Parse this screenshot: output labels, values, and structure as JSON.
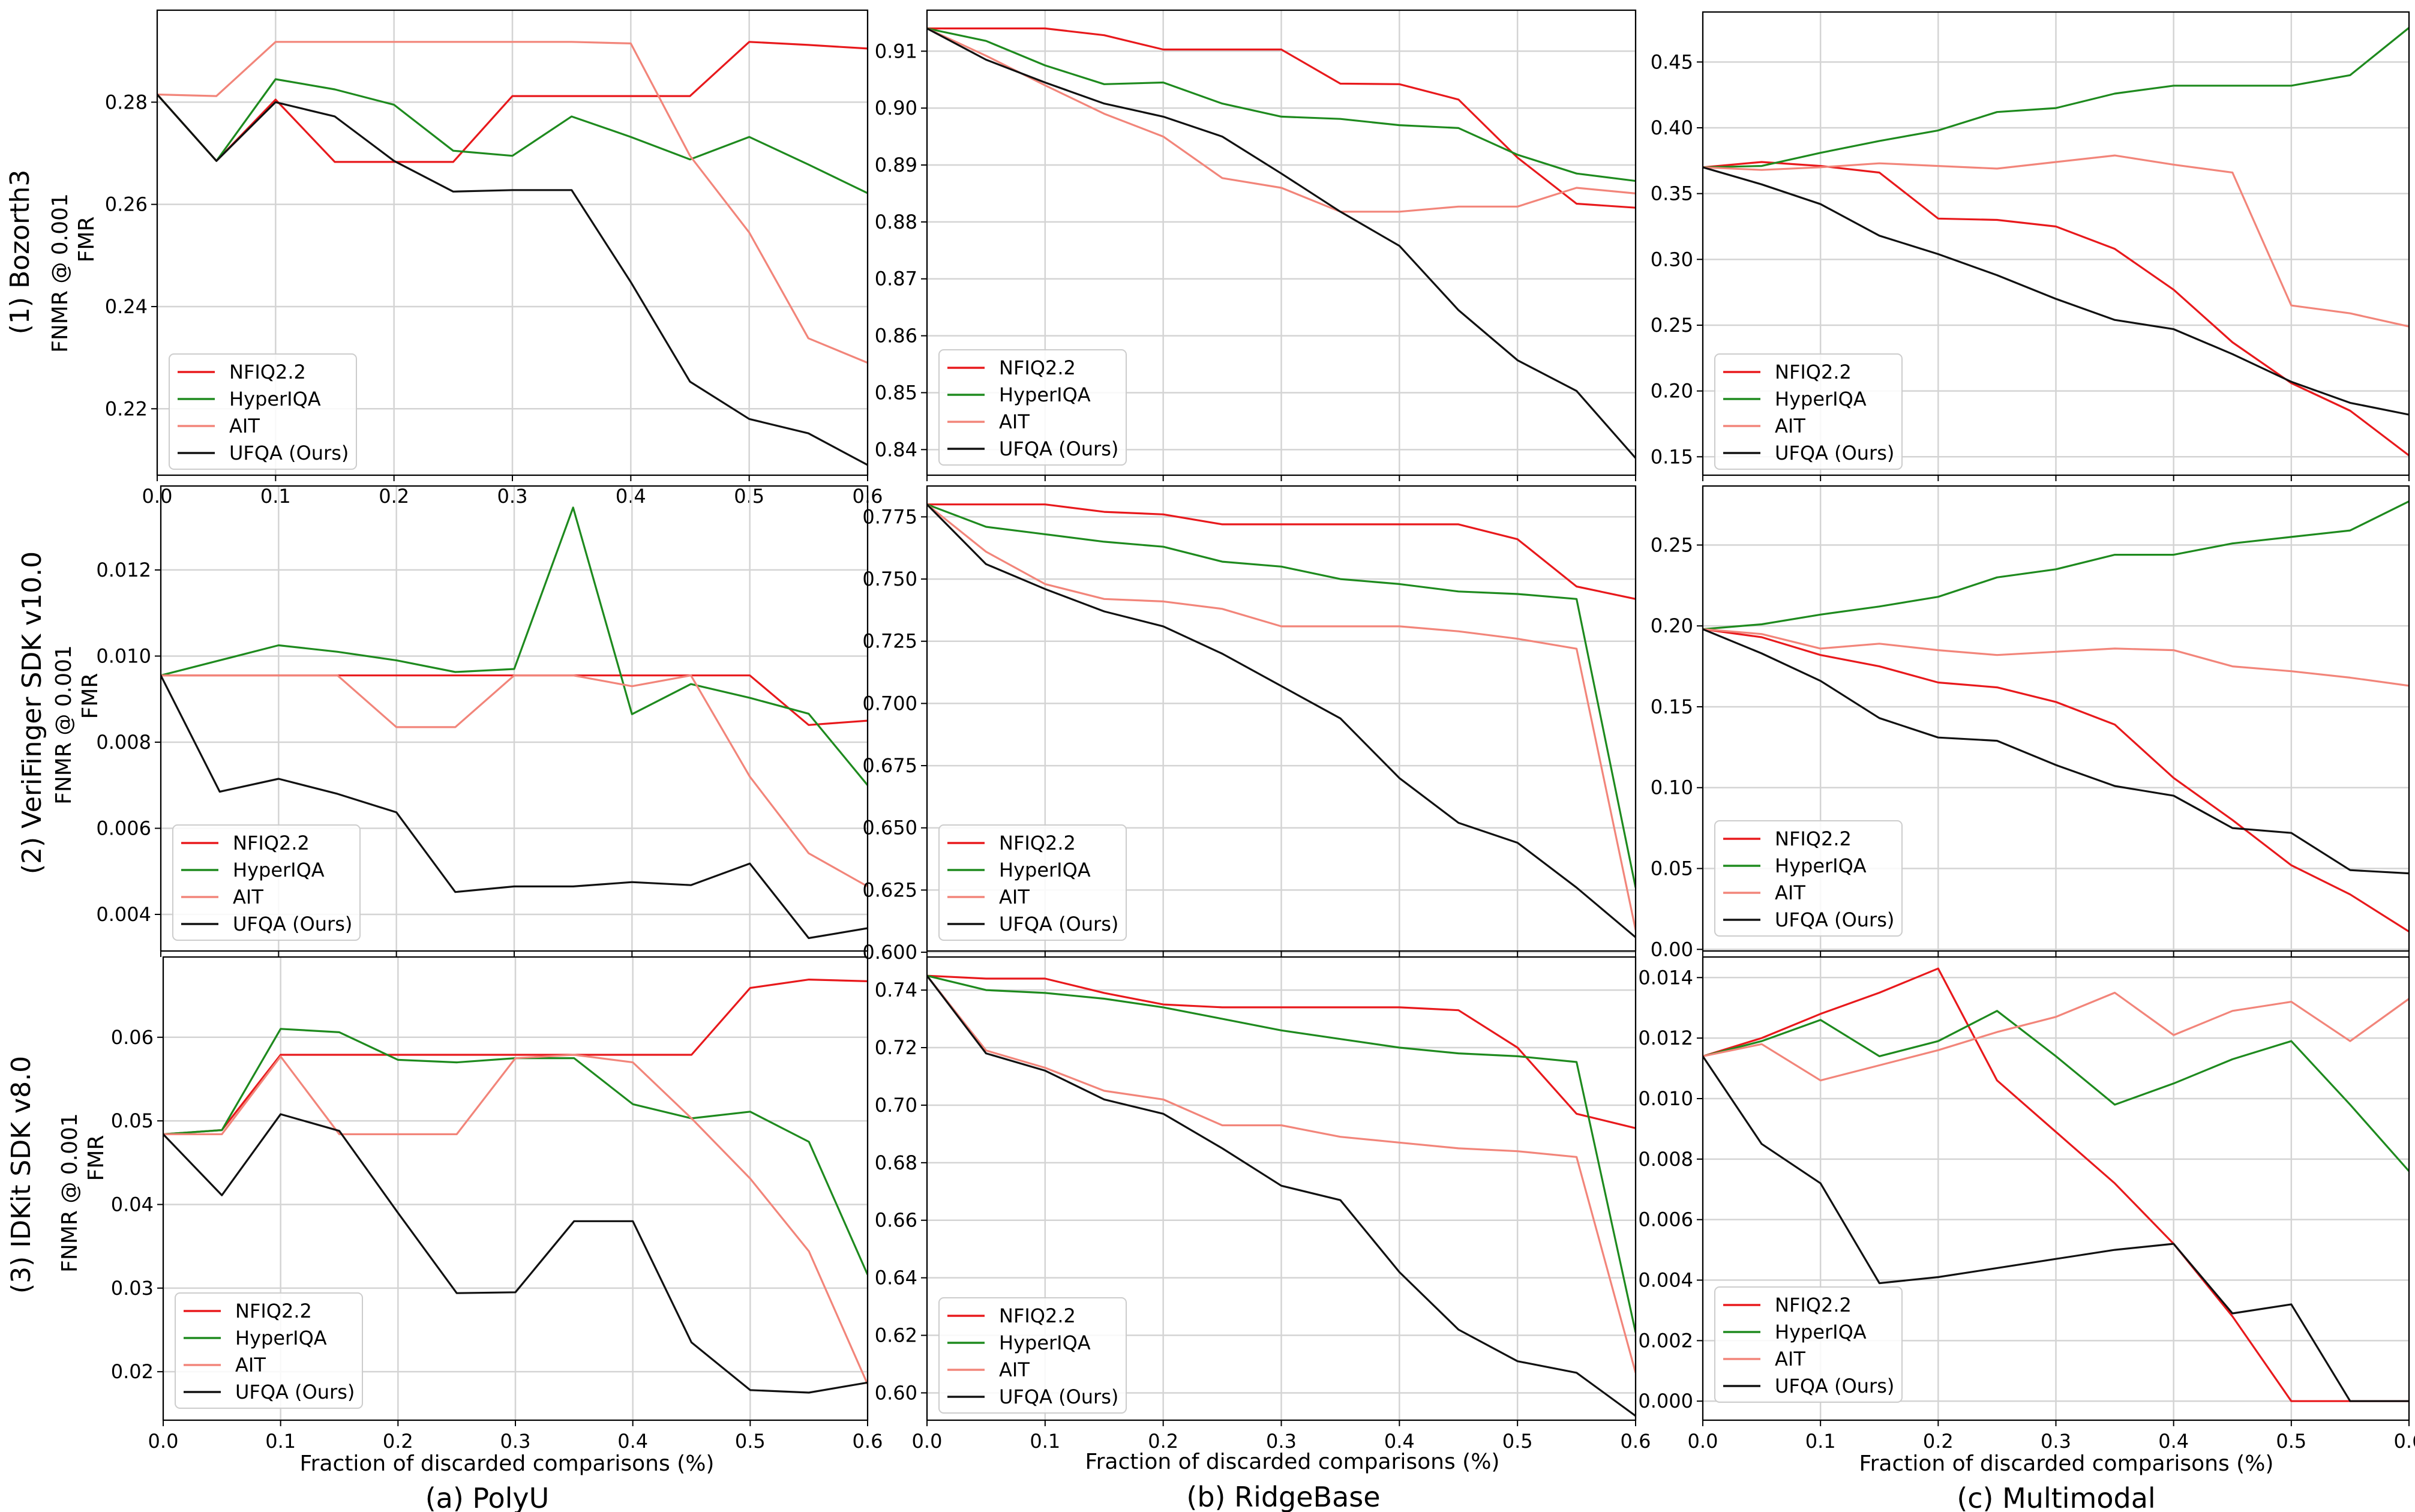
{
  "figure": {
    "row_titles": [
      "(1) Bozorth3",
      "(2) VeriFinger SDK v10.0",
      "(3) IDKit SDK v8.0"
    ],
    "ylabel_line1": "FNMR @ 0.001",
    "ylabel_line2": "FMR",
    "xlabel": "Fraction of discarded comparisons (%)",
    "column_titles": [
      "(a) PolyU",
      "(b) RidgeBase",
      "(c) Multimodal"
    ],
    "legend_labels": [
      "NFIQ2.2",
      "HyperIQA",
      "AIT",
      "UFQA (Ours)"
    ],
    "series_colors": {
      "NFIQ2.2": "#e8191c",
      "HyperIQA": "#1e8a1e",
      "AIT": "#f2857a",
      "UFQA (Ours)": "#111111"
    }
  },
  "chart_data": [
    {
      "type": "line",
      "panel": "(1) Bozorth3 / (a) PolyU",
      "x": [
        0,
        0.05,
        0.1,
        0.15,
        0.2,
        0.25,
        0.3,
        0.35,
        0.4,
        0.45,
        0.5,
        0.55,
        0.6
      ],
      "xlim": [
        0,
        0.6
      ],
      "ylim": [
        0.207,
        0.298
      ],
      "xticks": [
        "0.0",
        "0.1",
        "0.2",
        "0.3",
        "0.4",
        "0.5",
        "0.6"
      ],
      "yticks": [
        "0.22",
        "0.24",
        "0.26",
        "0.28"
      ],
      "ytick_values": [
        0.22,
        0.24,
        0.26,
        0.28
      ],
      "series": [
        {
          "name": "NFIQ2.2",
          "values": [
            0.2815,
            0.2685,
            0.2805,
            0.2683,
            0.2683,
            0.2683,
            0.2812,
            0.2812,
            0.2812,
            0.2812,
            0.2918,
            0.2912,
            0.2905
          ]
        },
        {
          "name": "HyperIQA",
          "values": [
            0.2815,
            0.2685,
            0.2845,
            0.2825,
            0.2795,
            0.2705,
            0.2695,
            0.2772,
            0.2732,
            0.2688,
            0.2732,
            0.2678,
            0.2622
          ]
        },
        {
          "name": "AIT",
          "values": [
            0.2815,
            0.2812,
            0.2918,
            0.2918,
            0.2918,
            0.2918,
            0.2918,
            0.2918,
            0.2915,
            0.2695,
            0.2545,
            0.2338,
            0.229
          ]
        },
        {
          "name": "UFQA (Ours)",
          "values": [
            0.2815,
            0.2685,
            0.28,
            0.2772,
            0.2685,
            0.2625,
            0.2628,
            0.2628,
            0.2448,
            0.2253,
            0.218,
            0.2152,
            0.209
          ]
        }
      ]
    },
    {
      "type": "line",
      "panel": "(1) Bozorth3 / (b) RidgeBase",
      "x": [
        0,
        0.05,
        0.1,
        0.15,
        0.2,
        0.25,
        0.3,
        0.35,
        0.4,
        0.45,
        0.5,
        0.55,
        0.6
      ],
      "xlim": [
        0,
        0.6
      ],
      "ylim": [
        0.8355,
        0.9172
      ],
      "xticks": [],
      "yticks": [
        "0.84",
        "0.85",
        "0.86",
        "0.87",
        "0.88",
        "0.89",
        "0.90",
        "0.91"
      ],
      "ytick_values": [
        0.84,
        0.85,
        0.86,
        0.87,
        0.88,
        0.89,
        0.9,
        0.91
      ],
      "series": [
        {
          "name": "NFIQ2.2",
          "values": [
            0.914,
            0.914,
            0.914,
            0.9128,
            0.9103,
            0.9103,
            0.9103,
            0.9043,
            0.9042,
            0.9015,
            0.8913,
            0.8832,
            0.8825
          ]
        },
        {
          "name": "HyperIQA",
          "values": [
            0.914,
            0.9118,
            0.9075,
            0.9042,
            0.9045,
            0.9008,
            0.8985,
            0.8981,
            0.897,
            0.8965,
            0.8918,
            0.8885,
            0.8872
          ]
        },
        {
          "name": "AIT",
          "values": [
            0.914,
            0.9092,
            0.904,
            0.899,
            0.895,
            0.8877,
            0.886,
            0.8818,
            0.8818,
            0.8827,
            0.8827,
            0.886,
            0.885
          ]
        },
        {
          "name": "UFQA (Ours)",
          "values": [
            0.914,
            0.9085,
            0.9045,
            0.9008,
            0.8985,
            0.895,
            0.8885,
            0.8818,
            0.8758,
            0.8645,
            0.8557,
            0.8503,
            0.8385
          ]
        }
      ]
    },
    {
      "type": "line",
      "panel": "(1) Bozorth3 / (c) Multimodal",
      "x": [
        0,
        0.05,
        0.1,
        0.15,
        0.2,
        0.25,
        0.3,
        0.35,
        0.4,
        0.45,
        0.5,
        0.55,
        0.6
      ],
      "xlim": [
        0,
        0.6
      ],
      "ylim": [
        0.136,
        0.488
      ],
      "xticks": [],
      "yticks": [
        "0.15",
        "0.20",
        "0.25",
        "0.30",
        "0.35",
        "0.40",
        "0.45"
      ],
      "ytick_values": [
        0.15,
        0.2,
        0.25,
        0.3,
        0.35,
        0.4,
        0.45
      ],
      "series": [
        {
          "name": "NFIQ2.2",
          "values": [
            0.37,
            0.374,
            0.371,
            0.366,
            0.331,
            0.33,
            0.325,
            0.308,
            0.277,
            0.237,
            0.206,
            0.185,
            0.151
          ]
        },
        {
          "name": "HyperIQA",
          "values": [
            0.37,
            0.371,
            0.381,
            0.39,
            0.398,
            0.412,
            0.415,
            0.426,
            0.432,
            0.432,
            0.432,
            0.44,
            0.476
          ]
        },
        {
          "name": "AIT",
          "values": [
            0.37,
            0.368,
            0.37,
            0.373,
            0.371,
            0.369,
            0.374,
            0.379,
            0.372,
            0.366,
            0.265,
            0.259,
            0.249
          ]
        },
        {
          "name": "UFQA (Ours)",
          "values": [
            0.37,
            0.357,
            0.342,
            0.318,
            0.304,
            0.288,
            0.27,
            0.254,
            0.247,
            0.228,
            0.207,
            0.191,
            0.182
          ]
        }
      ]
    },
    {
      "type": "line",
      "panel": "(2) VeriFinger SDK v10.0 / (a) PolyU",
      "x": [
        0,
        0.05,
        0.1,
        0.15,
        0.2,
        0.25,
        0.3,
        0.35,
        0.4,
        0.45,
        0.5,
        0.55,
        0.6
      ],
      "xlim": [
        0,
        0.6
      ],
      "ylim": [
        0.00315,
        0.01395
      ],
      "xticks": [],
      "yticks": [
        "0.004",
        "0.006",
        "0.008",
        "0.010",
        "0.012"
      ],
      "ytick_values": [
        0.004,
        0.006,
        0.008,
        0.01,
        0.012
      ],
      "series": [
        {
          "name": "NFIQ2.2",
          "values": [
            0.00955,
            0.00955,
            0.00955,
            0.00955,
            0.00955,
            0.00955,
            0.00955,
            0.00955,
            0.00955,
            0.00955,
            0.00955,
            0.0084,
            0.0085
          ]
        },
        {
          "name": "HyperIQA",
          "values": [
            0.00955,
            0.0099,
            0.01025,
            0.0101,
            0.0099,
            0.00963,
            0.0097,
            0.01345,
            0.00865,
            0.00935,
            0.00903,
            0.00866,
            0.007
          ]
        },
        {
          "name": "AIT",
          "values": [
            0.00955,
            0.00955,
            0.00955,
            0.00955,
            0.00835,
            0.00835,
            0.00955,
            0.00955,
            0.0093,
            0.00955,
            0.0072,
            0.00542,
            0.00465
          ]
        },
        {
          "name": "UFQA (Ours)",
          "values": [
            0.00955,
            0.00685,
            0.00715,
            0.0068,
            0.00637,
            0.00452,
            0.00465,
            0.00465,
            0.00475,
            0.00468,
            0.00518,
            0.00345,
            0.00368
          ]
        }
      ]
    },
    {
      "type": "line",
      "panel": "(2) VeriFinger SDK v10.0 / (b) RidgeBase",
      "x": [
        0,
        0.05,
        0.1,
        0.15,
        0.2,
        0.25,
        0.3,
        0.35,
        0.4,
        0.45,
        0.5,
        0.55,
        0.6
      ],
      "xlim": [
        0,
        0.6
      ],
      "ylim": [
        0.6005,
        0.7874
      ],
      "xticks": [],
      "yticks": [
        "0.600",
        "0.625",
        "0.650",
        "0.675",
        "0.700",
        "0.725",
        "0.750",
        "0.775"
      ],
      "ytick_values": [
        0.6,
        0.625,
        0.65,
        0.675,
        0.7,
        0.725,
        0.75,
        0.775
      ],
      "series": [
        {
          "name": "NFIQ2.2",
          "values": [
            0.78,
            0.78,
            0.78,
            0.777,
            0.776,
            0.772,
            0.772,
            0.772,
            0.772,
            0.772,
            0.766,
            0.747,
            0.742
          ]
        },
        {
          "name": "HyperIQA",
          "values": [
            0.78,
            0.771,
            0.768,
            0.765,
            0.763,
            0.757,
            0.755,
            0.75,
            0.748,
            0.745,
            0.744,
            0.742,
            0.626
          ]
        },
        {
          "name": "AIT",
          "values": [
            0.78,
            0.761,
            0.748,
            0.742,
            0.741,
            0.738,
            0.731,
            0.731,
            0.731,
            0.729,
            0.726,
            0.722,
            0.609
          ]
        },
        {
          "name": "UFQA (Ours)",
          "values": [
            0.78,
            0.756,
            0.746,
            0.737,
            0.731,
            0.72,
            0.707,
            0.694,
            0.67,
            0.652,
            0.644,
            0.626,
            0.606
          ]
        }
      ]
    },
    {
      "type": "line",
      "panel": "(2) VeriFinger SDK v10.0 / (c) Multimodal",
      "x": [
        0,
        0.05,
        0.1,
        0.15,
        0.2,
        0.25,
        0.3,
        0.35,
        0.4,
        0.45,
        0.5,
        0.55,
        0.6
      ],
      "xlim": [
        0,
        0.6
      ],
      "ylim": [
        -0.001,
        0.2865
      ],
      "xticks": [],
      "yticks": [
        "0.00",
        "0.05",
        "0.10",
        "0.15",
        "0.20",
        "0.25"
      ],
      "ytick_values": [
        0,
        0.05,
        0.1,
        0.15,
        0.2,
        0.25
      ],
      "series": [
        {
          "name": "NFIQ2.2",
          "values": [
            0.198,
            0.193,
            0.182,
            0.175,
            0.165,
            0.162,
            0.153,
            0.139,
            0.106,
            0.08,
            0.052,
            0.034,
            0.011
          ]
        },
        {
          "name": "HyperIQA",
          "values": [
            0.198,
            0.201,
            0.207,
            0.212,
            0.218,
            0.23,
            0.235,
            0.244,
            0.244,
            0.251,
            0.255,
            0.259,
            0.277
          ]
        },
        {
          "name": "AIT",
          "values": [
            0.198,
            0.195,
            0.186,
            0.189,
            0.185,
            0.182,
            0.184,
            0.186,
            0.185,
            0.175,
            0.172,
            0.168,
            0.163
          ]
        },
        {
          "name": "UFQA (Ours)",
          "values": [
            0.198,
            0.183,
            0.166,
            0.143,
            0.131,
            0.129,
            0.114,
            0.101,
            0.095,
            0.075,
            0.072,
            0.049,
            0.047
          ]
        }
      ]
    },
    {
      "type": "line",
      "panel": "(3) IDKit SDK v8.0 / (a) PolyU",
      "x": [
        0,
        0.05,
        0.1,
        0.15,
        0.2,
        0.25,
        0.3,
        0.35,
        0.4,
        0.45,
        0.5,
        0.55,
        0.6
      ],
      "xlim": [
        0,
        0.6
      ],
      "ylim": [
        0.0142,
        0.0696
      ],
      "xticks": [
        "0.0",
        "0.1",
        "0.2",
        "0.3",
        "0.4",
        "0.5",
        "0.6"
      ],
      "yticks": [
        "0.02",
        "0.03",
        "0.04",
        "0.05",
        "0.06"
      ],
      "ytick_values": [
        0.02,
        0.03,
        0.04,
        0.05,
        0.06
      ],
      "series": [
        {
          "name": "NFIQ2.2",
          "values": [
            0.0484,
            0.0489,
            0.0579,
            0.0579,
            0.0579,
            0.0579,
            0.0579,
            0.0579,
            0.0579,
            0.0579,
            0.0659,
            0.0669,
            0.0667
          ]
        },
        {
          "name": "HyperIQA",
          "values": [
            0.0484,
            0.0489,
            0.061,
            0.0606,
            0.0573,
            0.057,
            0.0575,
            0.0575,
            0.052,
            0.0503,
            0.0511,
            0.0475,
            0.0316
          ]
        },
        {
          "name": "AIT",
          "values": [
            0.0484,
            0.0484,
            0.0577,
            0.0484,
            0.0484,
            0.0484,
            0.0575,
            0.0579,
            0.057,
            0.0503,
            0.0431,
            0.0344,
            0.0185
          ]
        },
        {
          "name": "UFQA (Ours)",
          "values": [
            0.0484,
            0.0411,
            0.0508,
            0.0488,
            0.039,
            0.0294,
            0.0295,
            0.038,
            0.038,
            0.0235,
            0.0178,
            0.0175,
            0.0187
          ]
        }
      ]
    },
    {
      "type": "line",
      "panel": "(3) IDKit SDK v8.0 / (b) RidgeBase",
      "x": [
        0,
        0.05,
        0.1,
        0.15,
        0.2,
        0.25,
        0.3,
        0.35,
        0.4,
        0.45,
        0.5,
        0.55,
        0.6
      ],
      "xlim": [
        0,
        0.6
      ],
      "ylim": [
        0.5905,
        0.7515
      ],
      "xticks": [
        "0.0",
        "0.1",
        "0.2",
        "0.3",
        "0.4",
        "0.5",
        "0.6"
      ],
      "yticks": [
        "0.60",
        "0.62",
        "0.64",
        "0.66",
        "0.68",
        "0.70",
        "0.72",
        "0.74"
      ],
      "ytick_values": [
        0.6,
        0.62,
        0.64,
        0.66,
        0.68,
        0.7,
        0.72,
        0.74
      ],
      "series": [
        {
          "name": "NFIQ2.2",
          "values": [
            0.745,
            0.744,
            0.744,
            0.739,
            0.735,
            0.734,
            0.734,
            0.734,
            0.734,
            0.733,
            0.72,
            0.697,
            0.692
          ]
        },
        {
          "name": "HyperIQA",
          "values": [
            0.745,
            0.74,
            0.739,
            0.737,
            0.734,
            0.73,
            0.726,
            0.723,
            0.72,
            0.718,
            0.717,
            0.715,
            0.621
          ]
        },
        {
          "name": "AIT",
          "values": [
            0.745,
            0.719,
            0.713,
            0.705,
            0.702,
            0.693,
            0.693,
            0.689,
            0.687,
            0.685,
            0.684,
            0.682,
            0.607
          ]
        },
        {
          "name": "UFQA (Ours)",
          "values": [
            0.745,
            0.718,
            0.712,
            0.702,
            0.697,
            0.685,
            0.672,
            0.667,
            0.642,
            0.622,
            0.611,
            0.607,
            0.592
          ]
        }
      ]
    },
    {
      "type": "line",
      "panel": "(3) IDKit SDK v8.0 / (c) Multimodal",
      "x": [
        0,
        0.05,
        0.1,
        0.15,
        0.2,
        0.25,
        0.3,
        0.35,
        0.4,
        0.45,
        0.5,
        0.55,
        0.6
      ],
      "xlim": [
        0,
        0.6
      ],
      "ylim": [
        -0.00063,
        0.01468
      ],
      "xticks": [
        "0.0",
        "0.1",
        "0.2",
        "0.3",
        "0.4",
        "0.5",
        "0.6"
      ],
      "yticks": [
        "0.000",
        "0.002",
        "0.004",
        "0.006",
        "0.008",
        "0.010",
        "0.012",
        "0.014"
      ],
      "ytick_values": [
        0,
        0.002,
        0.004,
        0.006,
        0.008,
        0.01,
        0.012,
        0.014
      ],
      "series": [
        {
          "name": "NFIQ2.2",
          "values": [
            0.0114,
            0.012,
            0.0128,
            0.0135,
            0.0143,
            0.0106,
            0.0089,
            0.0072,
            0.0052,
            0.0028,
            0.0,
            0.0,
            0.0
          ]
        },
        {
          "name": "HyperIQA",
          "values": [
            0.0114,
            0.0119,
            0.0126,
            0.0114,
            0.0119,
            0.0129,
            0.0114,
            0.0098,
            0.0105,
            0.0113,
            0.0119,
            0.0098,
            0.0076
          ]
        },
        {
          "name": "AIT",
          "values": [
            0.0114,
            0.0118,
            0.0106,
            0.0111,
            0.0116,
            0.0122,
            0.0127,
            0.0135,
            0.0121,
            0.0129,
            0.0132,
            0.0119,
            0.0133
          ]
        },
        {
          "name": "UFQA (Ours)",
          "values": [
            0.0114,
            0.0085,
            0.0072,
            0.0039,
            0.0041,
            0.0044,
            0.0047,
            0.005,
            0.0052,
            0.0029,
            0.0032,
            0.0,
            0.0
          ]
        }
      ]
    }
  ]
}
